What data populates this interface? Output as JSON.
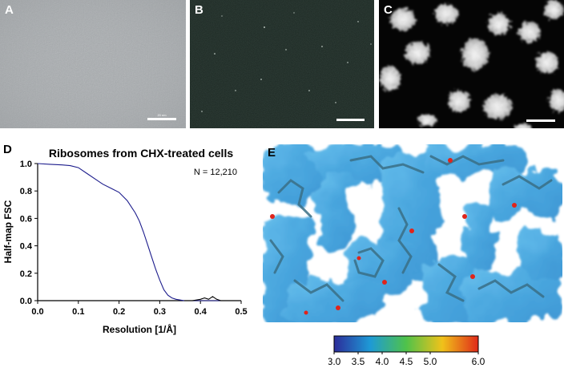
{
  "panels": {
    "a": {
      "label": "A",
      "scale_text": "20 nm"
    },
    "b": {
      "label": "B"
    },
    "c": {
      "label": "C"
    },
    "d": {
      "label": "D"
    },
    "e": {
      "label": "E"
    }
  },
  "chart_data": {
    "type": "line",
    "title": "Ribosomes from CHX-treated cells",
    "xlabel": "Resolution [1/Å]",
    "ylabel": "Half-map FSC",
    "annotation": "N = 12,210",
    "xlim": [
      0.0,
      0.5
    ],
    "ylim": [
      0.0,
      1.0
    ],
    "xticks": [
      "0.0",
      "0.1",
      "0.2",
      "0.3",
      "0.4",
      "0.5"
    ],
    "yticks": [
      "0.0",
      "0.2",
      "0.4",
      "0.6",
      "0.8",
      "1.0"
    ],
    "grid": false,
    "series": [
      {
        "color": "#1c1c8c",
        "x": [
          0.0,
          0.03,
          0.06,
          0.08,
          0.1,
          0.12,
          0.14,
          0.16,
          0.18,
          0.2,
          0.22,
          0.24,
          0.25,
          0.26,
          0.27,
          0.28,
          0.29,
          0.3,
          0.31,
          0.32,
          0.33,
          0.34,
          0.36,
          0.38,
          0.4,
          0.42,
          0.44,
          0.46,
          0.48,
          0.5
        ],
        "y": [
          1.0,
          0.995,
          0.99,
          0.985,
          0.97,
          0.93,
          0.89,
          0.85,
          0.82,
          0.79,
          0.73,
          0.64,
          0.58,
          0.5,
          0.41,
          0.32,
          0.23,
          0.15,
          0.08,
          0.04,
          0.02,
          0.01,
          0.0,
          0.0,
          0.0,
          0.0,
          0.0,
          0.0,
          0.0,
          0.0
        ]
      },
      {
        "color": "#000000",
        "x": [
          0.36,
          0.38,
          0.4,
          0.41,
          0.42,
          0.43,
          0.44,
          0.45,
          0.46,
          0.5
        ],
        "y": [
          0.0,
          0.0,
          0.01,
          0.02,
          0.01,
          0.03,
          0.01,
          0.0,
          0.0,
          0.0
        ]
      }
    ]
  },
  "colorbar": {
    "ticks": [
      "3.0",
      "3.5",
      "4.0",
      "4.5",
      "5.0",
      "6.0"
    ],
    "values": [
      3.0,
      3.5,
      4.0,
      4.5,
      5.0,
      6.0
    ],
    "range": [
      3.0,
      6.0
    ],
    "colors": [
      "#2c2c9a",
      "#1e9ad6",
      "#4fc24a",
      "#f0c21a",
      "#e02a1a"
    ]
  }
}
